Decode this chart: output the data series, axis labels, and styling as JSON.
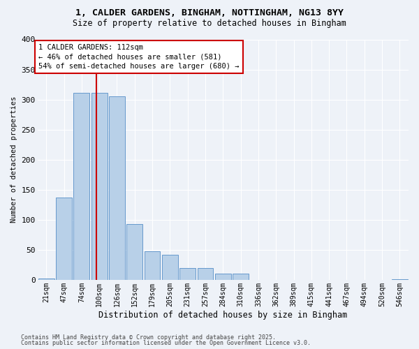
{
  "title1": "1, CALDER GARDENS, BINGHAM, NOTTINGHAM, NG13 8YY",
  "title2": "Size of property relative to detached houses in Bingham",
  "xlabel": "Distribution of detached houses by size in Bingham",
  "ylabel": "Number of detached properties",
  "categories": [
    "21sqm",
    "47sqm",
    "74sqm",
    "100sqm",
    "126sqm",
    "152sqm",
    "179sqm",
    "205sqm",
    "231sqm",
    "257sqm",
    "284sqm",
    "310sqm",
    "336sqm",
    "362sqm",
    "389sqm",
    "415sqm",
    "441sqm",
    "467sqm",
    "494sqm",
    "520sqm",
    "546sqm"
  ],
  "values": [
    2,
    137,
    311,
    311,
    305,
    93,
    47,
    42,
    20,
    20,
    10,
    10,
    0,
    0,
    0,
    0,
    0,
    0,
    0,
    0,
    1
  ],
  "bar_color": "#b8d0e8",
  "bar_edgecolor": "#6699cc",
  "marker_label": "1 CALDER GARDENS: 112sqm\n← 46% of detached houses are smaller (581)\n54% of semi-detached houses are larger (680) →",
  "annotation_box_color": "#ffffff",
  "annotation_box_edgecolor": "#cc0000",
  "vline_color": "#cc0000",
  "vline_x_index": 2.85,
  "ylim": [
    0,
    400
  ],
  "yticks": [
    0,
    50,
    100,
    150,
    200,
    250,
    300,
    350,
    400
  ],
  "footer1": "Contains HM Land Registry data © Crown copyright and database right 2025.",
  "footer2": "Contains public sector information licensed under the Open Government Licence v3.0.",
  "bg_color": "#eef2f8",
  "grid_color": "#ffffff"
}
